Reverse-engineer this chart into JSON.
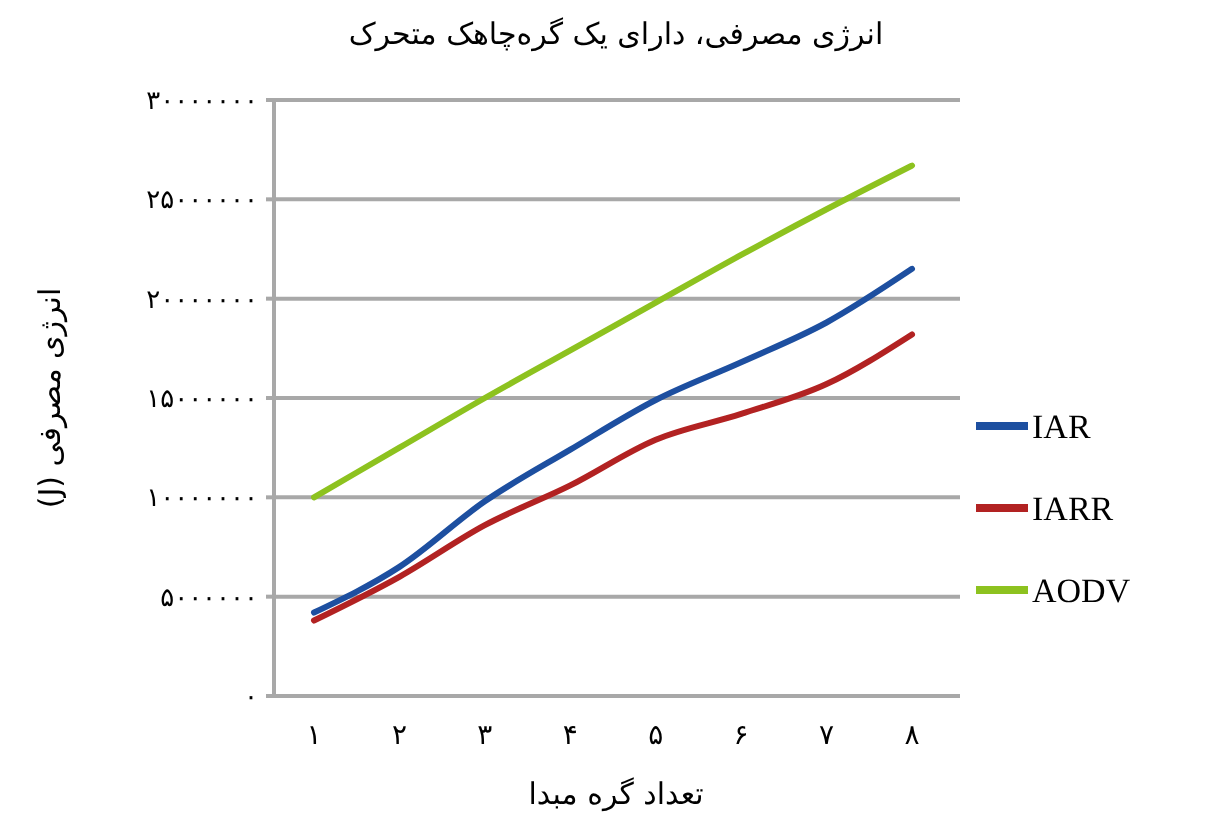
{
  "chart_data": {
    "type": "line",
    "title": "انرژی مصرفی، دارای یک گره‌چاهک متحرک",
    "xlabel": "تعداد گره مبدا",
    "ylabel": "انرژی مصرفی (J)",
    "categories": [
      "۱",
      "۲",
      "۳",
      "۴",
      "۵",
      "۶",
      "۷",
      "۸"
    ],
    "series": [
      {
        "name": "IAR",
        "color": "#1d4fa0",
        "values": [
          4200000,
          6500000,
          9800000,
          12400000,
          14900000,
          16800000,
          18800000,
          21500000
        ]
      },
      {
        "name": "IARR",
        "color": "#b22222",
        "values": [
          3800000,
          6000000,
          8600000,
          10600000,
          12900000,
          14200000,
          15700000,
          18200000
        ]
      },
      {
        "name": "AODV",
        "color": "#8dc21f",
        "values": [
          10000000,
          12500000,
          15000000,
          17400000,
          19800000,
          22200000,
          24500000,
          26700000
        ]
      }
    ],
    "ylim": [
      0,
      30000000
    ],
    "yticks": [
      {
        "value": 0,
        "label": "۰"
      },
      {
        "value": 5000000,
        "label": "۵۰۰۰۰۰۰"
      },
      {
        "value": 10000000,
        "label": "۱۰۰۰۰۰۰۰"
      },
      {
        "value": 15000000,
        "label": "۱۵۰۰۰۰۰۰"
      },
      {
        "value": 20000000,
        "label": "۲۰۰۰۰۰۰۰"
      },
      {
        "value": 25000000,
        "label": "۲۵۰۰۰۰۰۰"
      },
      {
        "value": 30000000,
        "label": "۳۰۰۰۰۰۰۰"
      }
    ],
    "grid": "y",
    "legend": "right",
    "marker": "none",
    "line_style": "solid"
  }
}
